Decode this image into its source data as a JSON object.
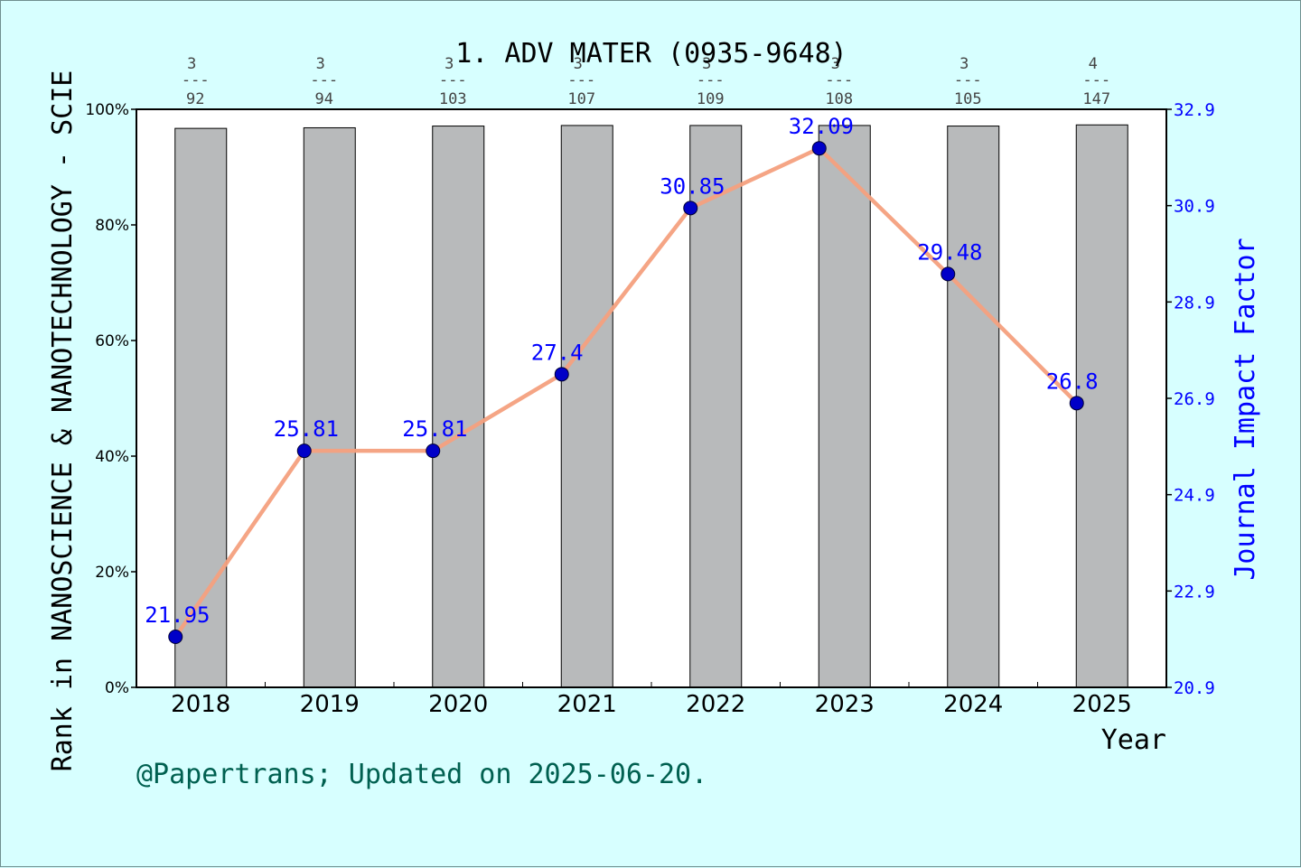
{
  "chart_data": {
    "type": "bar",
    "title": "1. ADV MATER (0935-9648)",
    "xlabel": "Year",
    "ylabel": "Rank in NANOSCIENCE & NANOTECHNOLOGY - SCIE",
    "y2label": "Journal Impact Factor",
    "footer": "@Papertrans; Updated on 2025-06-20.",
    "categories": [
      "2018",
      "2019",
      "2020",
      "2021",
      "2022",
      "2023",
      "2024",
      "2025"
    ],
    "ylim": [
      0,
      100
    ],
    "y_ticks": [
      "0%",
      "20%",
      "40%",
      "60%",
      "80%",
      "100%"
    ],
    "y2lim": [
      20.9,
      32.9
    ],
    "y2_ticks": [
      "20.9",
      "22.9",
      "24.9",
      "26.9",
      "28.9",
      "30.9",
      "32.9"
    ],
    "rank_labels": [
      {
        "rank": "3",
        "sep": "---",
        "total": "92"
      },
      {
        "rank": "3",
        "sep": "---",
        "total": "94"
      },
      {
        "rank": "3",
        "sep": "---",
        "total": "103"
      },
      {
        "rank": "3",
        "sep": "---",
        "total": "107"
      },
      {
        "rank": "3",
        "sep": "---",
        "total": "109"
      },
      {
        "rank": "3",
        "sep": "---",
        "total": "108"
      },
      {
        "rank": "3",
        "sep": "---",
        "total": "105"
      },
      {
        "rank": "4",
        "sep": "---",
        "total": "147"
      }
    ],
    "series": [
      {
        "type": "bar",
        "values": [
          96.7,
          96.8,
          97.1,
          97.2,
          97.2,
          97.2,
          97.1,
          97.3
        ]
      },
      {
        "type": "line",
        "axis": "right",
        "values": [
          21.95,
          25.81,
          25.81,
          27.4,
          30.85,
          32.09,
          29.48,
          26.8
        ],
        "labels": [
          "21.95",
          "25.81",
          "25.81",
          "27.4",
          "30.85",
          "32.09",
          "29.48",
          "26.8"
        ]
      }
    ],
    "grid": false,
    "colors": {
      "background": "#d7ffff",
      "plot": "#ffffff",
      "bar": "#b8babb",
      "line": "#f4a07e",
      "marker": "#0000c8",
      "if_axis": "#0000ff",
      "footer": "#006050"
    }
  }
}
